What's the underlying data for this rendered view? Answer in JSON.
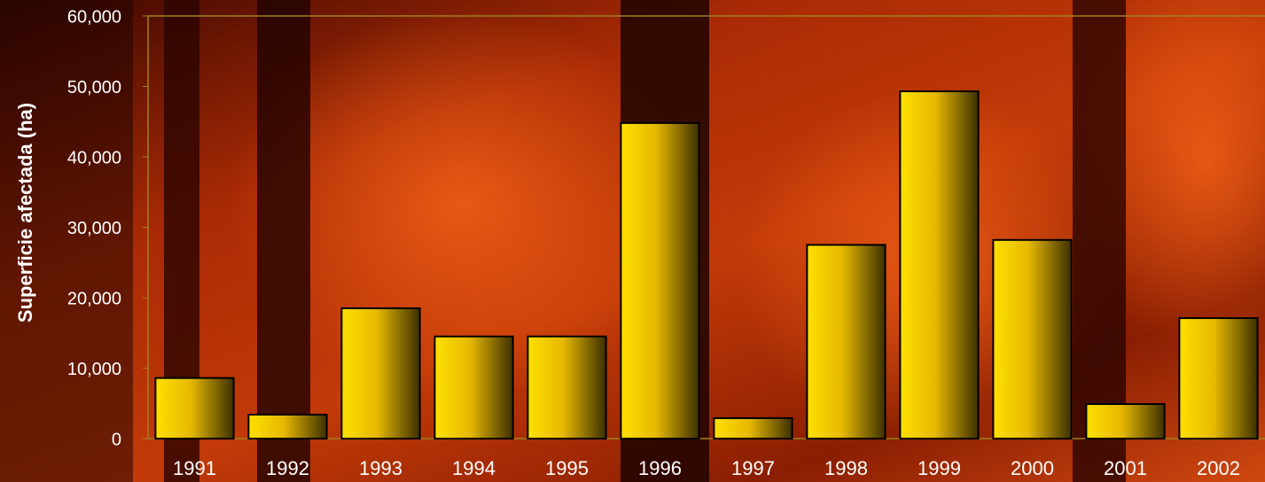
{
  "chart_data": {
    "type": "bar",
    "y_label": "Superficie afectada (ha)",
    "categories": [
      "1991",
      "1992",
      "1993",
      "1994",
      "1995",
      "1996",
      "1997",
      "1998",
      "1999",
      "2000",
      "2001",
      "2002"
    ],
    "values": [
      8600,
      3400,
      18500,
      14500,
      14500,
      44800,
      2900,
      27500,
      49300,
      28200,
      4900,
      17100
    ],
    "color": "#ffd200",
    "ylim": [
      0,
      60000
    ],
    "yticks": [
      0,
      {
        "value": 10000,
        "label": "10,000"
      },
      {
        "value": 20000,
        "label": "20,000"
      },
      {
        "value": 30000,
        "label": "30,000"
      },
      {
        "value": 40000,
        "label": "40,000"
      },
      {
        "value": 50000,
        "label": "50,000"
      },
      {
        "value": 60000,
        "label": "60,000"
      }
    ]
  }
}
